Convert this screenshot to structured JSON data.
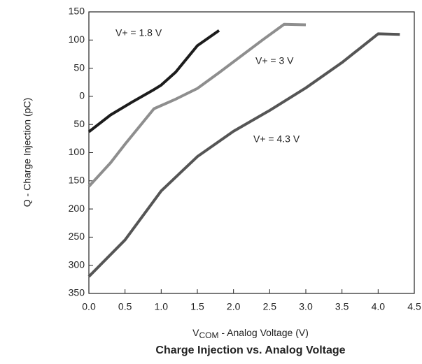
{
  "chart_data": {
    "type": "line",
    "title": "Charge Injection vs. Analog Voltage",
    "xlabel": {
      "symbol": "V",
      "subscript": "COM",
      "text": " -  Analog Voltage (V)"
    },
    "ylabel": "Q - Charge Injection (pC)",
    "xlim": [
      0,
      4.5
    ],
    "ylim": [
      -350,
      150
    ],
    "xticks": [
      {
        "value": 0,
        "label": "0.0"
      },
      0.5,
      {
        "value": 1,
        "label": "1.0"
      },
      1.5,
      {
        "value": 2,
        "label": "2.0"
      },
      2.5,
      {
        "value": 3,
        "label": "3.0"
      },
      3.5,
      {
        "value": 4,
        "label": "4.0"
      },
      4.5
    ],
    "yticks": [
      150,
      100,
      50,
      0,
      {
        "value": -50,
        "label": "50"
      },
      {
        "value": -100,
        "label": "100"
      },
      {
        "value": -150,
        "label": "150"
      },
      {
        "value": -200,
        "label": "200"
      },
      {
        "value": -250,
        "label": "250"
      },
      {
        "value": -300,
        "label": "300"
      },
      {
        "value": -350,
        "label": "350"
      }
    ],
    "grid": false,
    "series": [
      {
        "name": "V+ = 1.8 V",
        "color": "#1c1c1c",
        "x": [
          0,
          0.3,
          0.6,
          0.9,
          1.0,
          1.2,
          1.5,
          1.8
        ],
        "values": [
          -63,
          -33,
          -10,
          12,
          20,
          43,
          90,
          117
        ]
      },
      {
        "name": "V+ = 3 V",
        "color": "#8e8e8e",
        "x": [
          0,
          0.3,
          0.5,
          0.9,
          1.2,
          1.5,
          1.8,
          2.4,
          2.7,
          3.0
        ],
        "values": [
          -160,
          -118,
          -85,
          -22,
          -5,
          14,
          42,
          100,
          128,
          127
        ]
      },
      {
        "name": "V+ = 4.3 V",
        "color": "#555555",
        "x": [
          0,
          0.5,
          1.0,
          1.5,
          2.0,
          2.5,
          3.0,
          3.5,
          4.0,
          4.3
        ],
        "values": [
          -320,
          -255,
          -168,
          -107,
          -62,
          -25,
          15,
          60,
          111,
          110
        ]
      }
    ]
  }
}
